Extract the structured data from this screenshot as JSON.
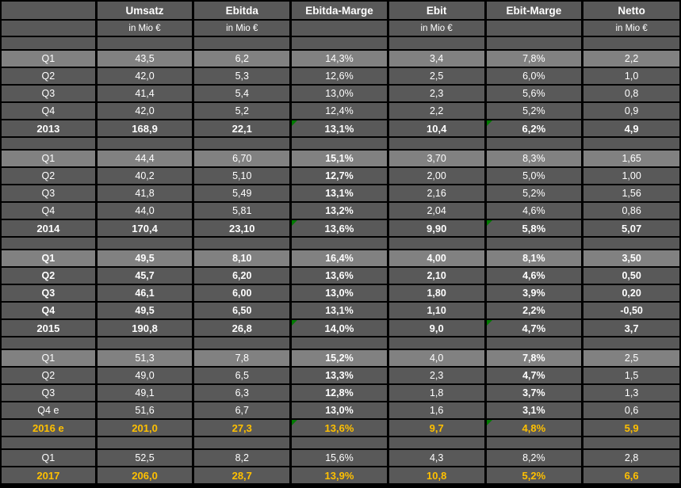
{
  "colors": {
    "background": "#000000",
    "cell": "#595959",
    "cell_light": "#818181",
    "text": "#ffffff",
    "accent_forecast": "#ffc000",
    "comment_flag": "#007b00",
    "grid": "#000000"
  },
  "table": {
    "columns": [
      {
        "key": "row-label",
        "header": "",
        "subheader": ""
      },
      {
        "key": "umsatz",
        "header": "Umsatz",
        "subheader": "in Mio €"
      },
      {
        "key": "ebitda",
        "header": "Ebitda",
        "subheader": "in Mio €"
      },
      {
        "key": "ebitda-marge",
        "header": "Ebitda-Marge",
        "subheader": ""
      },
      {
        "key": "ebit",
        "header": "Ebit",
        "subheader": "in Mio €"
      },
      {
        "key": "ebit-marge",
        "header": "Ebit-Marge",
        "subheader": ""
      },
      {
        "key": "netto",
        "header": "Netto",
        "subheader": "in Mio €"
      }
    ],
    "blocks": [
      {
        "year": "2013",
        "accent": false,
        "bold_all": false,
        "bold_cols": [],
        "quarters": [
          {
            "label": "Q1",
            "light": true,
            "values": [
              "43,5",
              "6,2",
              "14,3%",
              "3,4",
              "7,8%",
              "2,2"
            ]
          },
          {
            "label": "Q2",
            "light": false,
            "values": [
              "42,0",
              "5,3",
              "12,6%",
              "2,5",
              "6,0%",
              "1,0"
            ]
          },
          {
            "label": "Q3",
            "light": false,
            "values": [
              "41,4",
              "5,4",
              "13,0%",
              "2,3",
              "5,6%",
              "0,8"
            ]
          },
          {
            "label": "Q4",
            "light": false,
            "values": [
              "42,0",
              "5,2",
              "12,4%",
              "2,2",
              "5,2%",
              "0,9"
            ]
          }
        ],
        "total": {
          "label": "2013",
          "values": [
            "168,9",
            "22,1",
            "13,1%",
            "10,4",
            "6,2%",
            "4,9"
          ],
          "flags": [
            2,
            4
          ]
        }
      },
      {
        "year": "2014",
        "accent": false,
        "bold_all": false,
        "bold_cols": [
          2
        ],
        "quarters": [
          {
            "label": "Q1",
            "light": true,
            "values": [
              "44,4",
              "6,70",
              "15,1%",
              "3,70",
              "8,3%",
              "1,65"
            ]
          },
          {
            "label": "Q2",
            "light": false,
            "values": [
              "40,2",
              "5,10",
              "12,7%",
              "2,00",
              "5,0%",
              "1,00"
            ]
          },
          {
            "label": "Q3",
            "light": false,
            "values": [
              "41,8",
              "5,49",
              "13,1%",
              "2,16",
              "5,2%",
              "1,56"
            ]
          },
          {
            "label": "Q4",
            "light": false,
            "values": [
              "44,0",
              "5,81",
              "13,2%",
              "2,04",
              "4,6%",
              "0,86"
            ]
          }
        ],
        "total": {
          "label": "2014",
          "values": [
            "170,4",
            "23,10",
            "13,6%",
            "9,90",
            "5,8%",
            "5,07"
          ],
          "flags": [
            2,
            4
          ]
        }
      },
      {
        "year": "2015",
        "accent": false,
        "bold_all": true,
        "bold_cols": [],
        "quarters": [
          {
            "label": "Q1",
            "light": true,
            "values": [
              "49,5",
              "8,10",
              "16,4%",
              "4,00",
              "8,1%",
              "3,50"
            ]
          },
          {
            "label": "Q2",
            "light": false,
            "values": [
              "45,7",
              "6,20",
              "13,6%",
              "2,10",
              "4,6%",
              "0,50"
            ]
          },
          {
            "label": "Q3",
            "light": false,
            "values": [
              "46,1",
              "6,00",
              "13,0%",
              "1,80",
              "3,9%",
              "0,20"
            ]
          },
          {
            "label": "Q4",
            "light": false,
            "values": [
              "49,5",
              "6,50",
              "13,1%",
              "1,10",
              "2,2%",
              "-0,50"
            ]
          }
        ],
        "total": {
          "label": "2015",
          "values": [
            "190,8",
            "26,8",
            "14,0%",
            "9,0",
            "4,7%",
            "3,7"
          ],
          "flags": [
            2,
            4
          ]
        }
      },
      {
        "year": "2016",
        "accent": true,
        "bold_all": false,
        "bold_cols": [
          2,
          4
        ],
        "quarters": [
          {
            "label": "Q1",
            "light": true,
            "values": [
              "51,3",
              "7,8",
              "15,2%",
              "4,0",
              "7,8%",
              "2,5"
            ]
          },
          {
            "label": "Q2",
            "light": false,
            "values": [
              "49,0",
              "6,5",
              "13,3%",
              "2,3",
              "4,7%",
              "1,5"
            ]
          },
          {
            "label": "Q3",
            "light": false,
            "values": [
              "49,1",
              "6,3",
              "12,8%",
              "1,8",
              "3,7%",
              "1,3"
            ]
          },
          {
            "label": "Q4 e",
            "light": false,
            "values": [
              "51,6",
              "6,7",
              "13,0%",
              "1,6",
              "3,1%",
              "0,6"
            ]
          }
        ],
        "total": {
          "label": "2016 e",
          "values": [
            "201,0",
            "27,3",
            "13,6%",
            "9,7",
            "4,8%",
            "5,9"
          ],
          "flags": [
            2,
            4
          ]
        }
      },
      {
        "year": "2017",
        "accent": true,
        "bold_all": false,
        "bold_cols": [],
        "quarters": [
          {
            "label": "Q1",
            "light": false,
            "values": [
              "52,5",
              "8,2",
              "15,6%",
              "4,3",
              "8,2%",
              "2,8"
            ]
          }
        ],
        "total": {
          "label": "2017",
          "values": [
            "206,0",
            "28,7",
            "13,9%",
            "10,8",
            "5,2%",
            "6,6"
          ],
          "flags": []
        }
      }
    ]
  }
}
